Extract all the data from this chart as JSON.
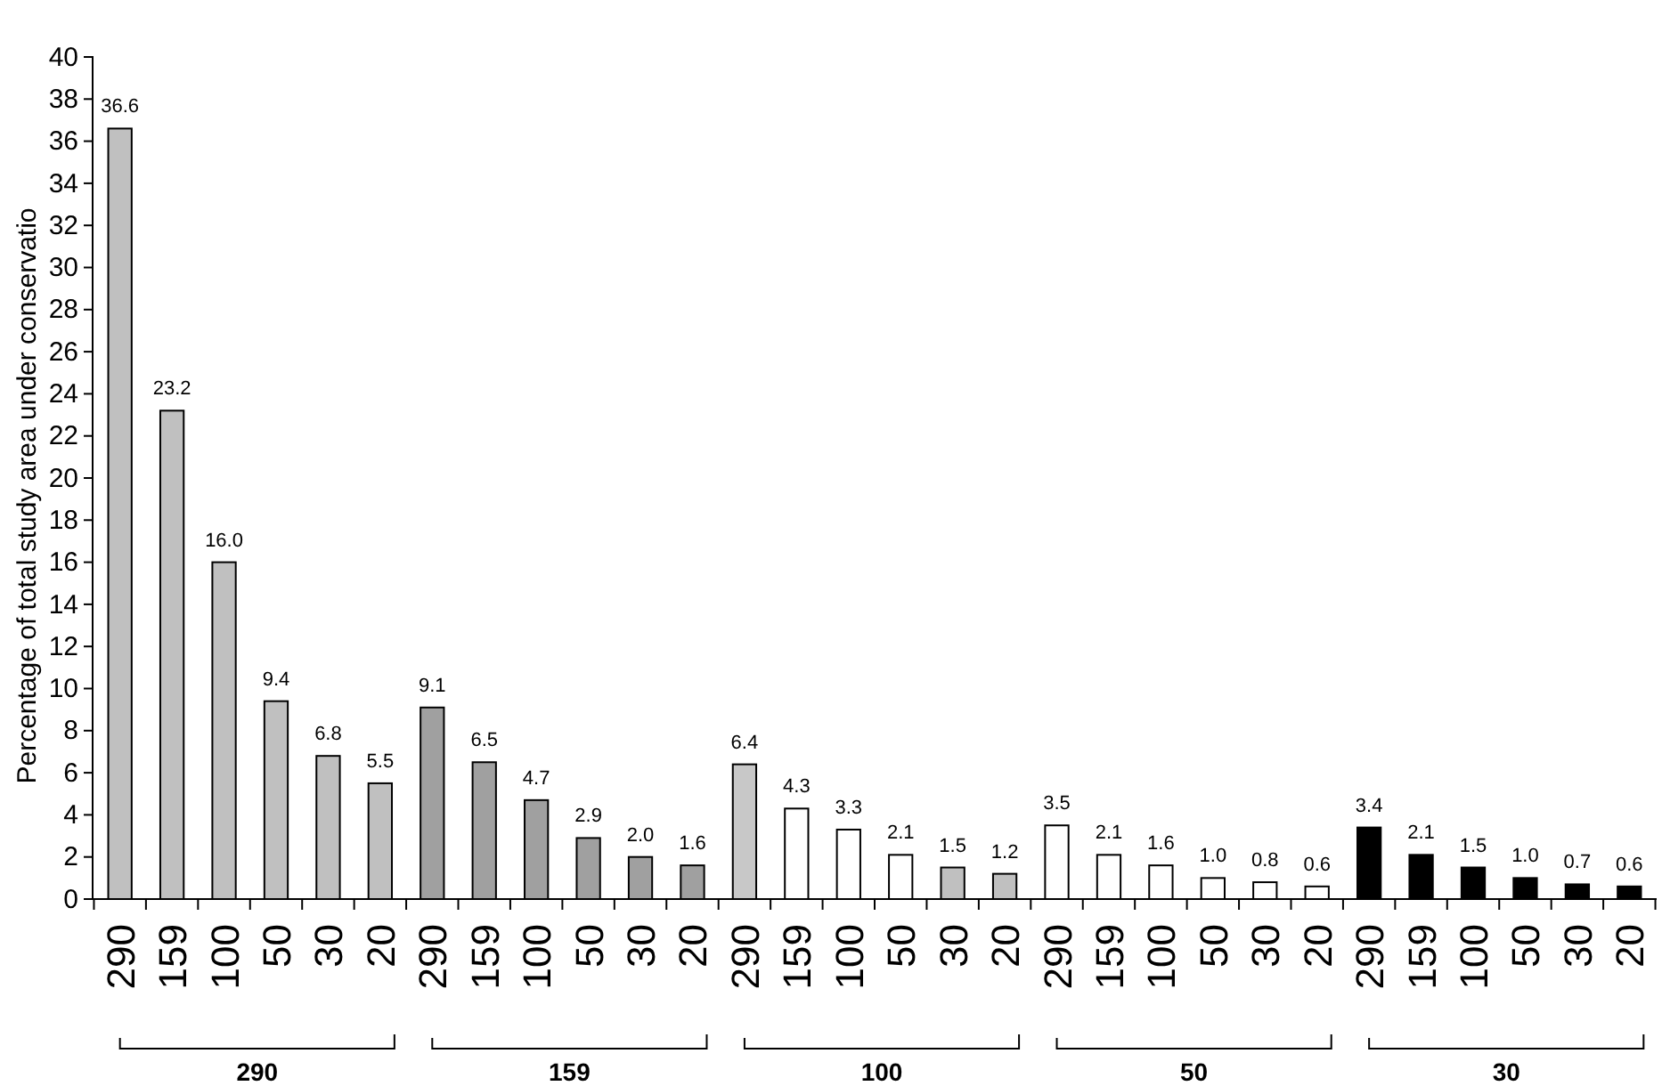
{
  "chart_data": {
    "type": "bar",
    "ylabel": "Percentage of total study area under conservatio",
    "categories": [
      "290",
      "159",
      "100",
      "50",
      "30",
      "20",
      "290",
      "159",
      "100",
      "50",
      "30",
      "20",
      "290",
      "159",
      "100",
      "50",
      "30",
      "20",
      "290",
      "159",
      "100",
      "50",
      "30",
      "20",
      "290",
      "159",
      "100",
      "50",
      "30",
      "20"
    ],
    "values": [
      36.6,
      23.2,
      16.0,
      9.4,
      6.8,
      5.5,
      9.1,
      6.5,
      4.7,
      2.9,
      2.0,
      1.6,
      6.4,
      4.3,
      3.3,
      2.1,
      1.5,
      1.2,
      3.5,
      2.1,
      1.6,
      1.0,
      0.8,
      0.6,
      3.4,
      2.1,
      1.5,
      1.0,
      0.7,
      0.6
    ],
    "value_labels": [
      "36.6",
      "23.2",
      "16.0",
      "9.4",
      "6.8",
      "5.5",
      "9.1",
      "6.5",
      "4.7",
      "2.9",
      "2.0",
      "1.6",
      "6.4",
      "4.3",
      "3.3",
      "2.1",
      "1.5",
      "1.2",
      "3.5",
      "2.1",
      "1.6",
      "1.0",
      "0.8",
      "0.6",
      "3.4",
      "2.1",
      "1.5",
      "1.0",
      "0.7",
      "0.6"
    ],
    "colors": [
      "#c0c0c0",
      "#c0c0c0",
      "#c0c0c0",
      "#c0c0c0",
      "#c0c0c0",
      "#c0c0c0",
      "#a0a0a0",
      "#a0a0a0",
      "#a0a0a0",
      "#a0a0a0",
      "#a0a0a0",
      "#a0a0a0",
      "#c8c8c8",
      "#ffffff",
      "#ffffff",
      "#ffffff",
      "#c0c0c0",
      "#c0c0c0",
      "#ffffff",
      "#ffffff",
      "#ffffff",
      "#ffffff",
      "#ffffff",
      "#ffffff",
      "#000000",
      "#000000",
      "#000000",
      "#000000",
      "#000000",
      "#000000"
    ],
    "annotations": [
      "290",
      "159",
      "100",
      "50",
      "30"
    ],
    "ylim": [
      0,
      40
    ],
    "yticks": [
      0,
      2,
      4,
      6,
      8,
      10,
      12,
      14,
      16,
      18,
      20,
      22,
      24,
      26,
      28,
      30,
      32,
      34,
      36,
      38,
      40
    ],
    "grid": false
  }
}
